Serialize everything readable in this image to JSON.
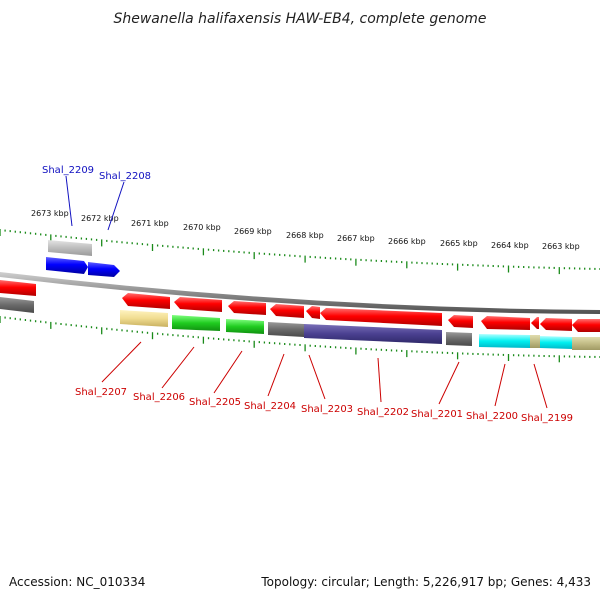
{
  "title": "Shewanella halifaxensis HAW-EB4, complete genome",
  "footer": {
    "accession": "Accession: NC_010334",
    "summary": "Topology: circular; Length: 5,226,917 bp; Genes: 4,433"
  },
  "colors": {
    "forward_label": "#1010c0",
    "reverse_label": "#cc0000",
    "backbone": "#888888",
    "tick": "#1a8a1a"
  },
  "scale_ticks": [
    {
      "label": "2673 kbp",
      "kbp": 2673
    },
    {
      "label": "2672 kbp",
      "kbp": 2672
    },
    {
      "label": "2671 kbp",
      "kbp": 2671
    },
    {
      "label": "2670 kbp",
      "kbp": 2670
    },
    {
      "label": "2669 kbp",
      "kbp": 2669
    },
    {
      "label": "2668 kbp",
      "kbp": 2668
    },
    {
      "label": "2667 kbp",
      "kbp": 2667
    },
    {
      "label": "2666 kbp",
      "kbp": 2666
    },
    {
      "label": "2665 kbp",
      "kbp": 2665
    },
    {
      "label": "2664 kbp",
      "kbp": 2664
    },
    {
      "label": "2663 kbp",
      "kbp": 2663
    }
  ],
  "forward_labels": [
    {
      "label": "Shal_2209"
    },
    {
      "label": "Shal_2208"
    }
  ],
  "reverse_labels": [
    {
      "label": "Shal_2207"
    },
    {
      "label": "Shal_2206"
    },
    {
      "label": "Shal_2205"
    },
    {
      "label": "Shal_2204"
    },
    {
      "label": "Shal_2203"
    },
    {
      "label": "Shal_2202"
    },
    {
      "label": "Shal_2201"
    },
    {
      "label": "Shal_2200"
    },
    {
      "label": "Shal_2199"
    }
  ]
}
